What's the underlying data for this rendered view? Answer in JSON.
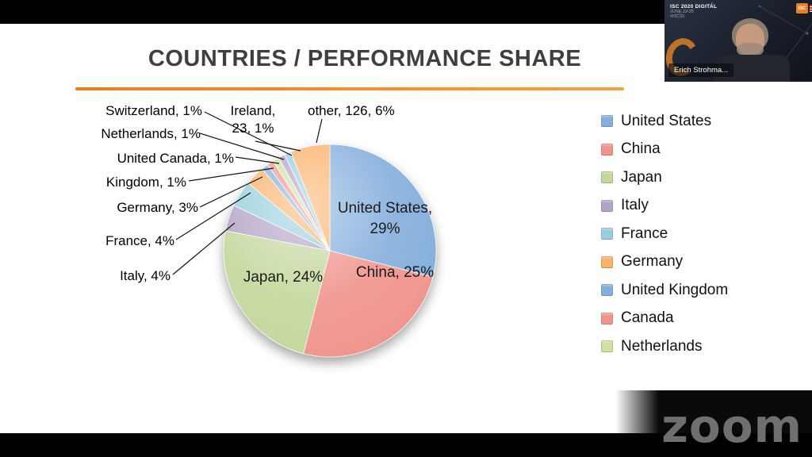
{
  "slide": {
    "title": "COUNTRIES / PERFORMANCE SHARE"
  },
  "chart_data": {
    "type": "pie",
    "title": "COUNTRIES / PERFORMANCE SHARE",
    "direction": "clockwise",
    "start_angle_deg": 0,
    "slices": [
      {
        "label": "United States",
        "value": 29,
        "color": "#84AEDC"
      },
      {
        "label": "China",
        "value": 25,
        "color": "#F0948D"
      },
      {
        "label": "Japan",
        "value": 24,
        "color": "#C3D79B"
      },
      {
        "label": "Italy",
        "value": 4,
        "color": "#B2A2C7"
      },
      {
        "label": "France",
        "value": 4,
        "color": "#96CEDD"
      },
      {
        "label": "Germany",
        "value": 3,
        "color": "#FAB168"
      },
      {
        "label": "United Kingdom",
        "value": 1,
        "color": "#84AEDC"
      },
      {
        "label": "Canada",
        "value": 1,
        "color": "#F0948D"
      },
      {
        "label": "Netherlands",
        "value": 1,
        "color": "#CEE0A2"
      },
      {
        "label": "Switzerland",
        "value": 1,
        "color": "#B2A2C7"
      },
      {
        "label": "Ireland",
        "value": 1,
        "color": "#96CEDD"
      },
      {
        "label": "other",
        "value": 6,
        "color": "#FAB168"
      }
    ],
    "inner_labels": [
      {
        "text": "United States, 29%"
      },
      {
        "text": "China, 25%"
      },
      {
        "text": "Japan, 24%"
      }
    ],
    "callouts": [
      {
        "text": "Switzerland, 1%"
      },
      {
        "text": "Netherlands, 1%"
      },
      {
        "text": "United Canada, 1%"
      },
      {
        "text": "Kingdom, 1%"
      },
      {
        "text": "Germany, 3%"
      },
      {
        "text": "France, 4%"
      },
      {
        "text": "Italy, 4%"
      },
      {
        "text": "Ireland, 23, 1%"
      },
      {
        "text": "other, 126, 6%"
      }
    ],
    "legend_position": "right",
    "legend": [
      {
        "label": "United States",
        "color": "#84AEDC"
      },
      {
        "label": "China",
        "color": "#F0948D"
      },
      {
        "label": "Japan",
        "color": "#C3D79B"
      },
      {
        "label": "Italy",
        "color": "#B2A2C7"
      },
      {
        "label": "France",
        "color": "#96CEDD"
      },
      {
        "label": "Germany",
        "color": "#FAB168"
      },
      {
        "label": "United Kingdom",
        "color": "#84AEDC"
      },
      {
        "label": "Canada",
        "color": "#F0948D"
      },
      {
        "label": "Netherlands",
        "color": "#CEE0A2"
      }
    ]
  },
  "webcam": {
    "name": "Erich Strohma...",
    "event_line1": "ISC 2020 DIGITAL",
    "event_line2": "JUNE 22-25",
    "event_line3": "#ISC20",
    "logo_text": "ISC"
  },
  "watermark": "zoom",
  "colors": {
    "accent_orange": "#F08B1D",
    "title_gray": "#3F3F3F"
  }
}
